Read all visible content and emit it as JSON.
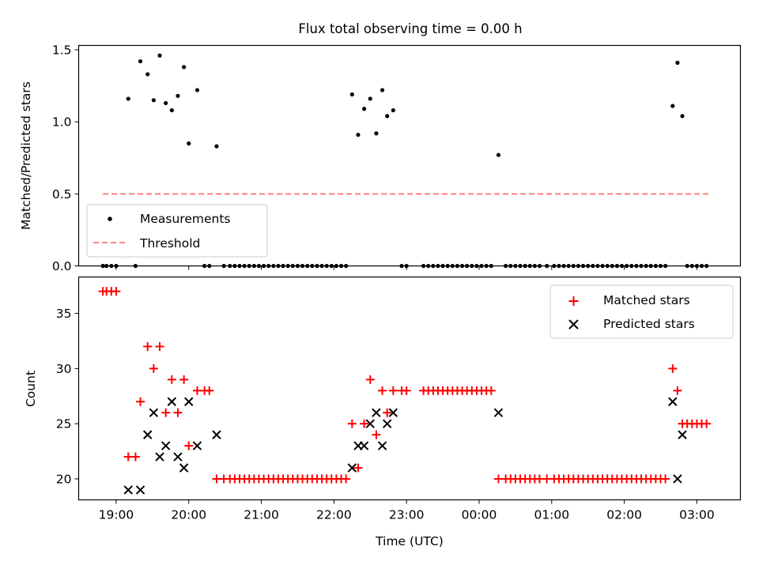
{
  "chart_data": [
    {
      "type": "scatter",
      "title": "Flux total observing time = 0.00 h",
      "xlabel": "",
      "ylabel": "Matched/Predicted stars",
      "ylim": [
        0,
        1.53
      ],
      "xlim": [
        "18:29",
        "03:36"
      ],
      "yticks": [
        0.0,
        0.5,
        1.0,
        1.5
      ],
      "ytick_labels": [
        "0.0",
        "0.5",
        "1.0",
        "1.5"
      ],
      "grid": false,
      "legend_position": "lower-left",
      "series": [
        {
          "name": "Measurements",
          "marker": "dot",
          "color": "#000000",
          "points": [
            [
              "18:49",
              0
            ],
            [
              "18:52",
              0
            ],
            [
              "18:56",
              0
            ],
            [
              "19:00",
              0
            ],
            [
              "19:10",
              1.16
            ],
            [
              "19:16",
              0
            ],
            [
              "19:20",
              1.42
            ],
            [
              "19:26",
              1.33
            ],
            [
              "19:31",
              1.15
            ],
            [
              "19:36",
              1.46
            ],
            [
              "19:41",
              1.13
            ],
            [
              "19:46",
              1.08
            ],
            [
              "19:51",
              1.18
            ],
            [
              "19:56",
              1.38
            ],
            [
              "20:00",
              0.85
            ],
            [
              "20:07",
              1.22
            ],
            [
              "20:13",
              0
            ],
            [
              "20:17",
              0
            ],
            [
              "20:23",
              0.83
            ],
            [
              "20:29",
              0
            ],
            [
              "20:34",
              0
            ],
            [
              "20:38",
              0
            ],
            [
              "20:42",
              0
            ],
            [
              "20:46",
              0
            ],
            [
              "20:50",
              0
            ],
            [
              "20:54",
              0
            ],
            [
              "20:58",
              0
            ],
            [
              "21:02",
              0
            ],
            [
              "21:06",
              0
            ],
            [
              "21:10",
              0
            ],
            [
              "21:14",
              0
            ],
            [
              "21:18",
              0
            ],
            [
              "21:22",
              0
            ],
            [
              "21:26",
              0
            ],
            [
              "21:30",
              0
            ],
            [
              "21:34",
              0
            ],
            [
              "21:38",
              0
            ],
            [
              "21:42",
              0
            ],
            [
              "21:46",
              0
            ],
            [
              "21:50",
              0
            ],
            [
              "21:54",
              0
            ],
            [
              "21:58",
              0
            ],
            [
              "22:02",
              0
            ],
            [
              "22:06",
              0
            ],
            [
              "22:10",
              0
            ],
            [
              "22:15",
              1.19
            ],
            [
              "22:20",
              0.91
            ],
            [
              "22:25",
              1.09
            ],
            [
              "22:30",
              1.16
            ],
            [
              "22:35",
              0.92
            ],
            [
              "22:40",
              1.22
            ],
            [
              "22:44",
              1.04
            ],
            [
              "22:49",
              1.08
            ],
            [
              "22:56",
              0
            ],
            [
              "23:00",
              0
            ],
            [
              "23:14",
              0
            ],
            [
              "23:18",
              0
            ],
            [
              "23:22",
              0
            ],
            [
              "23:26",
              0
            ],
            [
              "23:30",
              0
            ],
            [
              "23:34",
              0
            ],
            [
              "23:38",
              0
            ],
            [
              "23:42",
              0
            ],
            [
              "23:46",
              0
            ],
            [
              "23:50",
              0
            ],
            [
              "23:54",
              0
            ],
            [
              "23:58",
              0
            ],
            [
              "00:02",
              0
            ],
            [
              "00:06",
              0
            ],
            [
              "00:10",
              0
            ],
            [
              "00:16",
              0.77
            ],
            [
              "00:22",
              0
            ],
            [
              "00:26",
              0
            ],
            [
              "00:30",
              0
            ],
            [
              "00:34",
              0
            ],
            [
              "00:38",
              0
            ],
            [
              "00:42",
              0
            ],
            [
              "00:46",
              0
            ],
            [
              "00:50",
              0
            ],
            [
              "00:56",
              0
            ],
            [
              "01:02",
              0
            ],
            [
              "01:06",
              0
            ],
            [
              "01:10",
              0
            ],
            [
              "01:14",
              0
            ],
            [
              "01:18",
              0
            ],
            [
              "01:22",
              0
            ],
            [
              "01:26",
              0
            ],
            [
              "01:30",
              0
            ],
            [
              "01:34",
              0
            ],
            [
              "01:38",
              0
            ],
            [
              "01:42",
              0
            ],
            [
              "01:46",
              0
            ],
            [
              "01:50",
              0
            ],
            [
              "01:54",
              0
            ],
            [
              "01:58",
              0
            ],
            [
              "02:02",
              0
            ],
            [
              "02:06",
              0
            ],
            [
              "02:10",
              0
            ],
            [
              "02:14",
              0
            ],
            [
              "02:18",
              0
            ],
            [
              "02:22",
              0
            ],
            [
              "02:26",
              0
            ],
            [
              "02:30",
              0
            ],
            [
              "02:34",
              0
            ],
            [
              "02:40",
              1.11
            ],
            [
              "02:44",
              1.41
            ],
            [
              "02:48",
              1.04
            ],
            [
              "02:52",
              0
            ],
            [
              "02:56",
              0
            ],
            [
              "03:00",
              0
            ],
            [
              "03:04",
              0
            ],
            [
              "03:08",
              0
            ]
          ]
        },
        {
          "name": "Threshold",
          "style": "dashed-line",
          "color": "#ff7f7f",
          "points": [
            [
              "18:49",
              0.5
            ],
            [
              "03:10",
              0.5
            ]
          ]
        }
      ]
    },
    {
      "type": "scatter",
      "title": "",
      "xlabel": "Time (UTC)",
      "ylabel": "Count",
      "ylim": [
        18.1,
        38.3
      ],
      "xlim": [
        "18:29",
        "03:36"
      ],
      "yticks": [
        20,
        25,
        30,
        35
      ],
      "ytick_labels": [
        "20",
        "25",
        "30",
        "35"
      ],
      "xticks": [
        "19:00",
        "20:00",
        "21:00",
        "22:00",
        "23:00",
        "00:00",
        "01:00",
        "02:00",
        "03:00"
      ],
      "grid": false,
      "legend_position": "upper-right",
      "series": [
        {
          "name": "Matched stars",
          "marker": "plus",
          "color": "#ff0000",
          "points": [
            [
              "18:49",
              37
            ],
            [
              "18:52",
              37
            ],
            [
              "18:56",
              37
            ],
            [
              "19:00",
              37
            ],
            [
              "19:10",
              22
            ],
            [
              "19:16",
              22
            ],
            [
              "19:20",
              27
            ],
            [
              "19:26",
              32
            ],
            [
              "19:31",
              30
            ],
            [
              "19:36",
              32
            ],
            [
              "19:41",
              26
            ],
            [
              "19:46",
              29
            ],
            [
              "19:51",
              26
            ],
            [
              "19:56",
              29
            ],
            [
              "20:00",
              23
            ],
            [
              "20:07",
              28
            ],
            [
              "20:13",
              28
            ],
            [
              "20:17",
              28
            ],
            [
              "20:23",
              20
            ],
            [
              "20:29",
              20
            ],
            [
              "20:34",
              20
            ],
            [
              "20:38",
              20
            ],
            [
              "20:42",
              20
            ],
            [
              "20:46",
              20
            ],
            [
              "20:50",
              20
            ],
            [
              "20:54",
              20
            ],
            [
              "20:58",
              20
            ],
            [
              "21:02",
              20
            ],
            [
              "21:06",
              20
            ],
            [
              "21:10",
              20
            ],
            [
              "21:14",
              20
            ],
            [
              "21:18",
              20
            ],
            [
              "21:22",
              20
            ],
            [
              "21:26",
              20
            ],
            [
              "21:30",
              20
            ],
            [
              "21:34",
              20
            ],
            [
              "21:38",
              20
            ],
            [
              "21:42",
              20
            ],
            [
              "21:46",
              20
            ],
            [
              "21:50",
              20
            ],
            [
              "21:54",
              20
            ],
            [
              "21:58",
              20
            ],
            [
              "22:02",
              20
            ],
            [
              "22:06",
              20
            ],
            [
              "22:10",
              20
            ],
            [
              "22:15",
              25
            ],
            [
              "22:20",
              21
            ],
            [
              "22:25",
              25
            ],
            [
              "22:30",
              29
            ],
            [
              "22:35",
              24
            ],
            [
              "22:40",
              28
            ],
            [
              "22:44",
              26
            ],
            [
              "22:49",
              28
            ],
            [
              "22:56",
              28
            ],
            [
              "23:00",
              28
            ],
            [
              "23:14",
              28
            ],
            [
              "23:18",
              28
            ],
            [
              "23:22",
              28
            ],
            [
              "23:26",
              28
            ],
            [
              "23:30",
              28
            ],
            [
              "23:34",
              28
            ],
            [
              "23:38",
              28
            ],
            [
              "23:42",
              28
            ],
            [
              "23:46",
              28
            ],
            [
              "23:50",
              28
            ],
            [
              "23:54",
              28
            ],
            [
              "23:58",
              28
            ],
            [
              "00:02",
              28
            ],
            [
              "00:06",
              28
            ],
            [
              "00:10",
              28
            ],
            [
              "00:16",
              20
            ],
            [
              "00:22",
              20
            ],
            [
              "00:26",
              20
            ],
            [
              "00:30",
              20
            ],
            [
              "00:34",
              20
            ],
            [
              "00:38",
              20
            ],
            [
              "00:42",
              20
            ],
            [
              "00:46",
              20
            ],
            [
              "00:50",
              20
            ],
            [
              "00:56",
              20
            ],
            [
              "01:02",
              20
            ],
            [
              "01:06",
              20
            ],
            [
              "01:10",
              20
            ],
            [
              "01:14",
              20
            ],
            [
              "01:18",
              20
            ],
            [
              "01:22",
              20
            ],
            [
              "01:26",
              20
            ],
            [
              "01:30",
              20
            ],
            [
              "01:34",
              20
            ],
            [
              "01:38",
              20
            ],
            [
              "01:42",
              20
            ],
            [
              "01:46",
              20
            ],
            [
              "01:50",
              20
            ],
            [
              "01:54",
              20
            ],
            [
              "01:58",
              20
            ],
            [
              "02:02",
              20
            ],
            [
              "02:06",
              20
            ],
            [
              "02:10",
              20
            ],
            [
              "02:14",
              20
            ],
            [
              "02:18",
              20
            ],
            [
              "02:22",
              20
            ],
            [
              "02:26",
              20
            ],
            [
              "02:30",
              20
            ],
            [
              "02:34",
              20
            ],
            [
              "02:40",
              30
            ],
            [
              "02:44",
              28
            ],
            [
              "02:48",
              25
            ],
            [
              "02:52",
              25
            ],
            [
              "02:56",
              25
            ],
            [
              "03:00",
              25
            ],
            [
              "03:04",
              25
            ],
            [
              "03:08",
              25
            ]
          ]
        },
        {
          "name": "Predicted stars",
          "marker": "x",
          "color": "#000000",
          "points": [
            [
              "19:10",
              19
            ],
            [
              "19:20",
              19
            ],
            [
              "19:26",
              24
            ],
            [
              "19:31",
              26
            ],
            [
              "19:36",
              22
            ],
            [
              "19:41",
              23
            ],
            [
              "19:46",
              27
            ],
            [
              "19:51",
              22
            ],
            [
              "19:56",
              21
            ],
            [
              "20:00",
              27
            ],
            [
              "20:07",
              23
            ],
            [
              "20:23",
              24
            ],
            [
              "22:15",
              21
            ],
            [
              "22:20",
              23
            ],
            [
              "22:25",
              23
            ],
            [
              "22:30",
              25
            ],
            [
              "22:35",
              26
            ],
            [
              "22:40",
              23
            ],
            [
              "22:44",
              25
            ],
            [
              "22:49",
              26
            ],
            [
              "00:16",
              26
            ],
            [
              "02:40",
              27
            ],
            [
              "02:44",
              20
            ],
            [
              "02:48",
              24
            ]
          ]
        }
      ]
    }
  ]
}
